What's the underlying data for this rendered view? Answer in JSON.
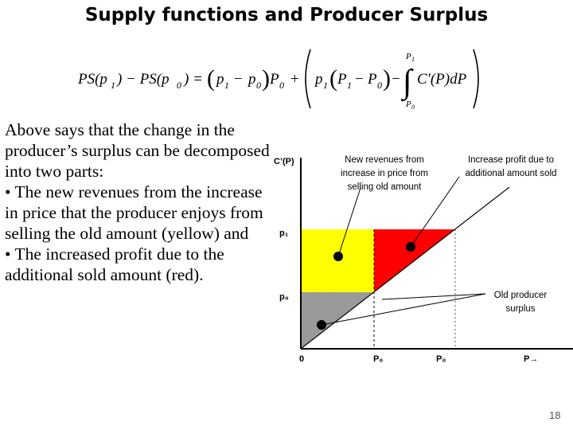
{
  "slide": {
    "title": "Supply functions and Producer Surplus",
    "page_number": "18"
  },
  "formula": {
    "lhs_a": "PS(p",
    "sub_1": "1",
    "lhs_mid": ") − PS(p",
    "sub_0": "0",
    "lhs_end": ") =",
    "term1": "p",
    "minus": "−",
    "times_p": "P",
    "plus": "+",
    "term2_p": "p",
    "term2_P": "P",
    "integral_upper": "P",
    "integral_lower": "P",
    "integrand": "C′(P)dP"
  },
  "body": {
    "paragraph1": "Above says that the change in the producer’s surplus can be decomposed into two parts:",
    "bullet1": "• The new revenues from the increase in price that the producer enjoys from selling the old amount (yellow) and",
    "bullet2": "• The increased profit due to the additional sold amount (red)."
  },
  "chart": {
    "y_axis_label": "C’(P)",
    "x_axis_label": "P→",
    "origin_label": "0",
    "y_ticks": [
      "p₁",
      "p₀"
    ],
    "x_ticks": [
      "P₀",
      "P₀"
    ],
    "annotations": {
      "new_revenues": [
        "New revenues from",
        "increase in price from",
        "selling old amount"
      ],
      "increase_profit": [
        "Increase profit due to",
        "additional amount sold"
      ],
      "old_surplus": [
        "Old producer",
        "surplus"
      ]
    },
    "colors": {
      "yellow_region": "#ffff00",
      "red_region": "#ff0000",
      "grey_region": "#a6a6a6"
    }
  }
}
